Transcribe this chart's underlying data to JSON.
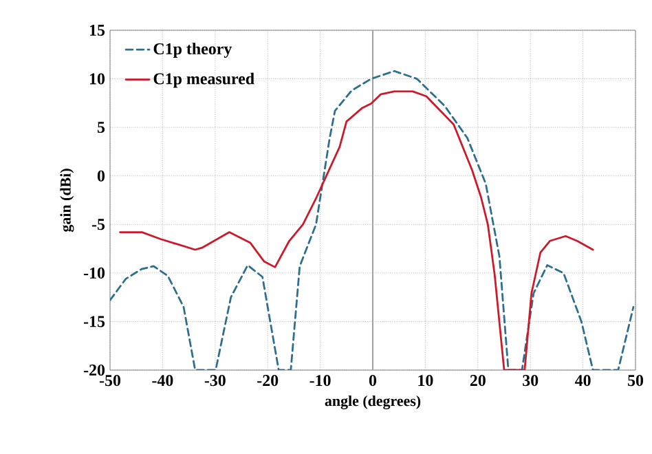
{
  "chart_data": {
    "type": "line",
    "xlabel": "angle (degrees)",
    "ylabel": "gain (dBi)",
    "xlim": [
      -50,
      50
    ],
    "xticks": [
      -50,
      -40,
      -30,
      -20,
      -10,
      0,
      10,
      20,
      30,
      40,
      50
    ],
    "ylim": [
      -20,
      15
    ],
    "yticks": [
      -20,
      -15,
      -10,
      -5,
      0,
      5,
      10,
      15
    ],
    "grid": true,
    "legend": "top left",
    "marker": "none",
    "ref_lines": [
      {
        "axis": "x",
        "value": 0,
        "color": "#a0a0a0",
        "line_style": "solid"
      }
    ],
    "series": [
      {
        "name": "C1p theory",
        "color": "#2e6e8e",
        "line_style": "dashed",
        "x": [
          -50,
          -47,
          -44,
          -41.7,
          -39,
          -36,
          -33.8,
          -29.9,
          -27,
          -23.8,
          -21,
          -17.9,
          -15.6,
          -13.9,
          -10.8,
          -8.2,
          -7.2,
          -4,
          -0.3,
          4.1,
          8.4,
          13.7,
          18,
          21.5,
          24.1,
          25.8,
          28.4,
          30.6,
          33.2,
          36.3,
          39.7,
          41.9,
          46.7,
          49.6
        ],
        "values": [
          -12.8,
          -10.6,
          -9.6,
          -9.3,
          -10.3,
          -13.5,
          -20,
          -20,
          -12.5,
          -9.2,
          -10.4,
          -20,
          -20,
          -9.3,
          -5,
          3.9,
          6.7,
          8.8,
          10.0,
          10.8,
          10.0,
          7.2,
          3.9,
          -0.8,
          -8.3,
          -20,
          -20,
          -12.1,
          -9.2,
          -10,
          -15,
          -20,
          -20,
          -13.5
        ]
      },
      {
        "name": "C1p measured",
        "color": "#cc1a2a",
        "line_style": "solid",
        "x": [
          -48.1,
          -43.9,
          -40.4,
          -33.8,
          -32.5,
          -27.3,
          -23.3,
          -20.7,
          -18.6,
          -15.9,
          -13.3,
          -10.7,
          -6.3,
          -5.0,
          -2,
          -0.3,
          1.5,
          4.1,
          7.6,
          10.2,
          15.4,
          18.9,
          20.6,
          21.9,
          23.2,
          25,
          28.9,
          30.2,
          31.9,
          33.7,
          36.7,
          38.9,
          41.9
        ],
        "values": [
          -5.8,
          -5.8,
          -6.5,
          -7.6,
          -7.4,
          -5.8,
          -6.9,
          -8.8,
          -9.4,
          -6.7,
          -5,
          -2.2,
          3.0,
          5.6,
          7.0,
          7.45,
          8.4,
          8.7,
          8.7,
          8.2,
          5.3,
          0.6,
          -2.2,
          -5,
          -10.2,
          -20,
          -20,
          -12.1,
          -7.9,
          -6.7,
          -6.2,
          -6.7,
          -7.6
        ]
      }
    ]
  }
}
